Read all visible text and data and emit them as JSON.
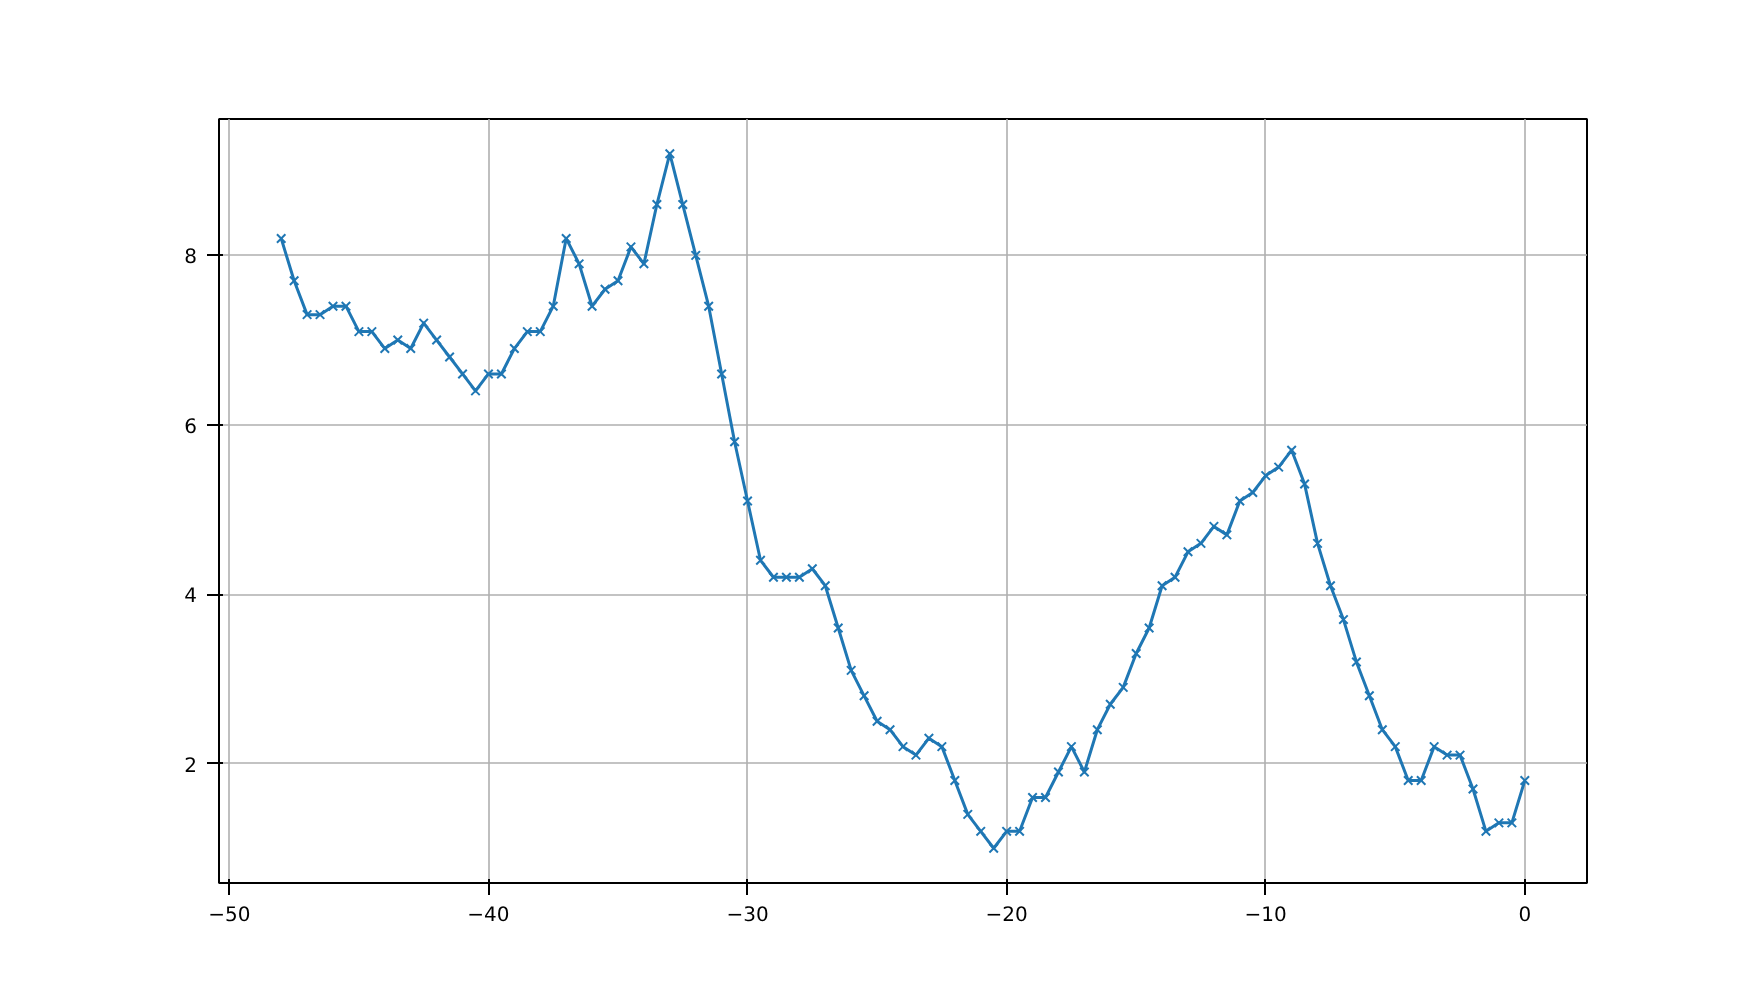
{
  "chart_data": {
    "type": "line",
    "marker": "cross",
    "line_style": "solid",
    "grid": true,
    "xlim": [
      -50.4,
      2.4
    ],
    "xticks": [
      {
        "value": -50,
        "label": "−50"
      },
      {
        "value": -40,
        "label": "−40"
      },
      {
        "value": -30,
        "label": "−30"
      },
      {
        "value": -20,
        "label": "−20"
      },
      {
        "value": -10,
        "label": "−10"
      },
      0
    ],
    "ylim": [
      0.59,
      9.61
    ],
    "yticks": [
      2,
      4,
      6,
      8
    ],
    "x": [
      -48,
      -47.5,
      -47,
      -46.5,
      -46,
      -45.5,
      -45,
      -44.5,
      -44,
      -43.5,
      -43,
      -42.5,
      -42,
      -41.5,
      -41,
      -40.5,
      -40,
      -39.5,
      -39,
      -38.5,
      -38,
      -37.5,
      -37,
      -36.5,
      -36,
      -35.5,
      -35,
      -34.5,
      -34,
      -33.5,
      -33,
      -32.5,
      -32,
      -31.5,
      -31,
      -30.5,
      -30,
      -29.5,
      -29,
      -28.5,
      -28,
      -27.5,
      -27,
      -26.5,
      -26,
      -25.5,
      -25,
      -24.5,
      -24,
      -23.5,
      -23,
      -22.5,
      -22,
      -21.5,
      -21,
      -20.5,
      -20,
      -19.5,
      -19,
      -18.5,
      -18,
      -17.5,
      -17,
      -16.5,
      -16,
      -15.5,
      -15,
      -14.5,
      -14,
      -13.5,
      -13,
      -12.5,
      -12,
      -11.5,
      -11,
      -10.5,
      -10,
      -9.5,
      -9,
      -8.5,
      -8,
      -7.5,
      -7,
      -6.5,
      -6,
      -5.5,
      -5,
      -4.5,
      -4,
      -3.5,
      -3,
      -2.5,
      -2,
      -1.5,
      -1,
      -0.5,
      0
    ],
    "series": [
      {
        "color": "#1f77b4",
        "values": [
          8.2,
          7.7,
          7.3,
          7.3,
          7.4,
          7.4,
          7.1,
          7.1,
          6.9,
          7.0,
          6.9,
          7.2,
          7.0,
          6.8,
          6.6,
          6.4,
          6.6,
          6.6,
          6.9,
          7.1,
          7.1,
          7.4,
          8.2,
          7.9,
          7.4,
          7.6,
          7.7,
          8.1,
          7.9,
          8.6,
          9.2,
          8.6,
          8.0,
          7.4,
          6.6,
          5.8,
          5.1,
          4.4,
          4.2,
          4.2,
          4.2,
          4.3,
          4.1,
          3.6,
          3.1,
          2.8,
          2.5,
          2.4,
          2.2,
          2.1,
          2.3,
          2.2,
          1.8,
          1.4,
          1.2,
          1.0,
          1.2,
          1.2,
          1.6,
          1.6,
          1.9,
          2.2,
          1.9,
          2.4,
          2.7,
          2.9,
          3.3,
          3.6,
          4.1,
          4.2,
          4.5,
          4.6,
          4.8,
          4.7,
          5.1,
          5.2,
          5.4,
          5.5,
          5.7,
          5.3,
          4.6,
          4.1,
          3.7,
          3.2,
          2.8,
          2.4,
          2.2,
          1.8,
          1.8,
          2.2,
          2.1,
          2.1,
          1.7,
          1.2,
          1.3,
          1.3,
          1.8
        ]
      }
    ]
  }
}
